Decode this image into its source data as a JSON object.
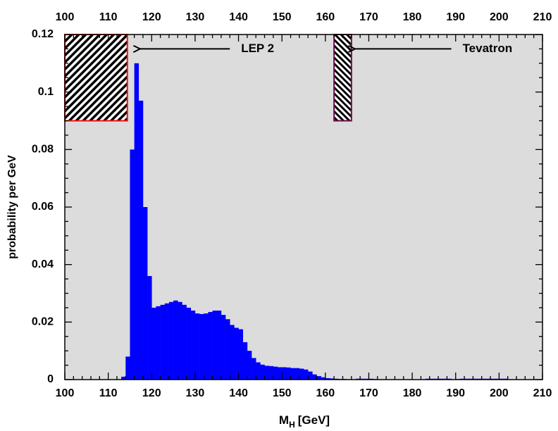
{
  "chart_data": {
    "type": "histogram",
    "ylabel": "probability per GeV",
    "xlabel": [
      "M",
      "H",
      "[GeV]"
    ],
    "color": "#0000ff",
    "background": "#dcdcdc",
    "xlim": [
      100,
      210
    ],
    "ylim": [
      0,
      0.12
    ],
    "xticks": [
      100,
      110,
      120,
      130,
      140,
      150,
      160,
      170,
      180,
      190,
      200,
      210
    ],
    "yticks": [
      0,
      0.02,
      0.04,
      0.06,
      0.08,
      0.1,
      0.12
    ],
    "xminorticks": [
      102,
      104,
      106,
      108,
      112,
      114,
      116,
      118,
      122,
      124,
      126,
      128,
      132,
      134,
      136,
      138,
      142,
      144,
      146,
      148,
      152,
      154,
      156,
      158,
      162,
      164,
      166,
      168,
      172,
      174,
      176,
      178,
      182,
      184,
      186,
      188,
      192,
      194,
      196,
      198,
      202,
      204,
      206,
      208
    ],
    "yminorticks": [
      0.005,
      0.01,
      0.015,
      0.025,
      0.03,
      0.035,
      0.045,
      0.05,
      0.055,
      0.065,
      0.07,
      0.075,
      0.085,
      0.09,
      0.095,
      0.105,
      0.11,
      0.115
    ],
    "bins": [
      112,
      113,
      114,
      115,
      116,
      117,
      118,
      119,
      120,
      121,
      122,
      123,
      124,
      125,
      126,
      127,
      128,
      129,
      130,
      131,
      132,
      133,
      134,
      135,
      136,
      137,
      138,
      139,
      140,
      141,
      142,
      143,
      144,
      145,
      146,
      147,
      148,
      149,
      150,
      151,
      152,
      153,
      154,
      155,
      156,
      157,
      158,
      159,
      160,
      161,
      162,
      163,
      164,
      165,
      166,
      167,
      168,
      169,
      170,
      171,
      172,
      173,
      174,
      175,
      176,
      177,
      178,
      179,
      180,
      181,
      182,
      183,
      184,
      185,
      186,
      187,
      188,
      189,
      190,
      191,
      192,
      193,
      194,
      195,
      196,
      197,
      198,
      199,
      200,
      201,
      202,
      203
    ],
    "values": [
      0,
      0.001,
      0.008,
      0.08,
      0.11,
      0.097,
      0.06,
      0.036,
      0.025,
      0.0255,
      0.026,
      0.0265,
      0.027,
      0.0275,
      0.027,
      0.026,
      0.025,
      0.024,
      0.023,
      0.0228,
      0.023,
      0.0235,
      0.024,
      0.024,
      0.0225,
      0.021,
      0.019,
      0.018,
      0.0175,
      0.013,
      0.01,
      0.0075,
      0.006,
      0.0052,
      0.0048,
      0.0047,
      0.0045,
      0.0043,
      0.0043,
      0.0042,
      0.004,
      0.004,
      0.0038,
      0.0035,
      0.0028,
      0.0018,
      0.0012,
      0.0008,
      0.0005,
      0.0004,
      0.0003,
      0.0002,
      0.0002,
      0.0001,
      0.0001,
      0.0003,
      0.0003,
      0.0003,
      0.0003,
      0.0002,
      0.0001,
      0.0001,
      0.0001,
      0.0001,
      0.0001,
      0.0001,
      0.0001,
      0.0001,
      0.0001,
      0.0001,
      0.0001,
      0.0003,
      0.0003,
      0.0003,
      0.0003,
      0.0003,
      0.0003,
      0.0001,
      0.0002,
      0.0003,
      0.0003,
      0.0003,
      0.0003,
      0.0003,
      0.0003,
      0.0003,
      0.0003,
      0.0003,
      0.0003,
      0.0003,
      0.0001
    ],
    "annotations": [
      {
        "text": "LEP 2",
        "color": "#ee1111",
        "xrange": [
          100,
          114.4
        ],
        "yrange": [
          0.09,
          0.12
        ],
        "arrow": [
          138,
          117
        ],
        "arrow_y": 0.115
      },
      {
        "text": "Tevatron",
        "color": "#6b0a4a",
        "xrange": [
          162,
          166
        ],
        "yrange": [
          0.09,
          0.12
        ],
        "arrow": [
          189,
          166.5
        ],
        "arrow_y": 0.115
      }
    ]
  }
}
